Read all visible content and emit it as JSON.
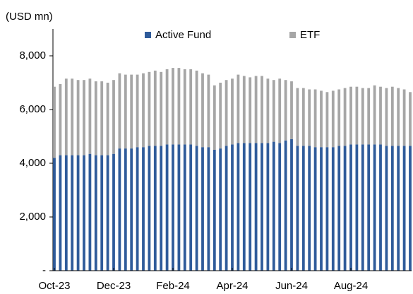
{
  "chart_data": {
    "type": "stacked-bar",
    "y_label": "(USD mn)",
    "categories": [
      "Oct-23",
      null,
      null,
      null,
      null,
      null,
      null,
      null,
      null,
      null,
      "Dec-23",
      null,
      null,
      null,
      null,
      null,
      null,
      null,
      null,
      null,
      "Feb-24",
      null,
      null,
      null,
      null,
      null,
      null,
      null,
      null,
      null,
      "Apr-24",
      null,
      null,
      null,
      null,
      null,
      null,
      null,
      null,
      null,
      "Jun-24",
      null,
      null,
      null,
      null,
      null,
      null,
      null,
      null,
      null,
      "Aug-24",
      null,
      null,
      null,
      null,
      null,
      null,
      null,
      null,
      null,
      null
    ],
    "series": [
      {
        "name": "Active Fund",
        "color": "#2f5b9a",
        "values": [
          4200,
          4300,
          4300,
          4300,
          4300,
          4300,
          4350,
          4300,
          4300,
          4300,
          4350,
          4550,
          4550,
          4550,
          4600,
          4600,
          4650,
          4650,
          4650,
          4700,
          4700,
          4700,
          4700,
          4700,
          4650,
          4600,
          4600,
          4500,
          4550,
          4650,
          4700,
          4750,
          4750,
          4750,
          4750,
          4750,
          4750,
          4800,
          4750,
          4850,
          4900,
          4650,
          4650,
          4650,
          4600,
          4600,
          4600,
          4600,
          4650,
          4650,
          4700,
          4700,
          4700,
          4700,
          4700,
          4700,
          4650,
          4650,
          4650,
          4650,
          4650
        ]
      },
      {
        "name": "ETF",
        "color": "#a6a6a6",
        "values": [
          2650,
          2650,
          2850,
          2850,
          2800,
          2800,
          2800,
          2750,
          2750,
          2700,
          2750,
          2800,
          2750,
          2750,
          2700,
          2750,
          2750,
          2800,
          2750,
          2800,
          2850,
          2850,
          2800,
          2800,
          2800,
          2750,
          2700,
          2400,
          2450,
          2450,
          2450,
          2550,
          2500,
          2450,
          2500,
          2500,
          2400,
          2300,
          2400,
          2250,
          2150,
          2150,
          2150,
          2100,
          2150,
          2100,
          2050,
          2100,
          2100,
          2150,
          2150,
          2150,
          2100,
          2100,
          2200,
          2150,
          2150,
          2200,
          2150,
          2100,
          2000
        ]
      }
    ],
    "ylim": [
      0,
      9000
    ],
    "yticks": [
      {
        "value": 0,
        "label": "-"
      },
      {
        "value": 2000,
        "label": "2,000"
      },
      {
        "value": 4000,
        "label": "4,000"
      },
      {
        "value": 6000,
        "label": "6,000"
      },
      {
        "value": 8000,
        "label": "8,000"
      }
    ],
    "legend": "top"
  }
}
